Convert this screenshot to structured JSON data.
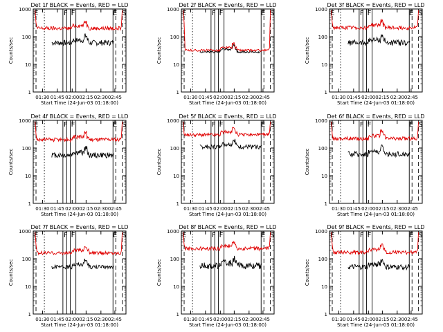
{
  "figure": {
    "xlabel": "Start Time (24-Jun-03 01:18:00)",
    "ylabel": "Counts/sec",
    "x_tick_labels": [
      "01:30",
      "01:45",
      "02:00",
      "02:15",
      "02:30",
      "02:45"
    ],
    "y_tick_labels": [
      "1",
      "10",
      "100",
      "1000"
    ],
    "region_markers": {
      "E_left": "E",
      "F": "F",
      "E_right": "E",
      "S": "S"
    },
    "colors": {
      "events": "#000000",
      "lld": "#e00000",
      "axes": "#000000",
      "background": "#ffffff"
    }
  },
  "chart_data": [
    {
      "type": "line",
      "title": "Det 1f BLACK = Events, RED = LLD",
      "ylim": [
        1,
        1000
      ],
      "yscale": "log",
      "x_range_minutes": [
        0,
        100
      ],
      "markers_minutes": {
        "E_left": 3,
        "F": [
          32,
          36,
          40,
          46
        ],
        "E_right": 86,
        "S": 96
      },
      "series": [
        {
          "name": "Events",
          "color": "#000000",
          "start": 18,
          "end": 89,
          "level": 60,
          "noise": 0.1
        },
        {
          "name": "LLD",
          "color": "#e00000",
          "start": 2,
          "end": 96,
          "level": 200,
          "noise": 0.07
        }
      ]
    },
    {
      "type": "line",
      "title": "Det 2f BLACK = Events, RED = LLD",
      "ylim": [
        1,
        1000
      ],
      "yscale": "log",
      "x_range_minutes": [
        0,
        100
      ],
      "markers_minutes": {
        "E_left": 3,
        "F": [
          32,
          36,
          40,
          46
        ],
        "E_right": 86,
        "S": 96
      },
      "series": [
        {
          "name": "Events",
          "color": "#000000",
          "start": 18,
          "end": 89,
          "level": 28,
          "noise": 0.04
        },
        {
          "name": "LLD",
          "color": "#e00000",
          "start": 2,
          "end": 96,
          "level": 32,
          "noise": 0.04
        }
      ]
    },
    {
      "type": "line",
      "title": "Det 3f BLACK = Events, RED = LLD",
      "ylim": [
        1,
        1000
      ],
      "yscale": "log",
      "x_range_minutes": [
        0,
        100
      ],
      "markers_minutes": {
        "E_left": 3,
        "F": [
          32,
          36,
          40,
          46
        ],
        "E_right": 86,
        "S": 96
      },
      "series": [
        {
          "name": "Events",
          "color": "#000000",
          "start": 18,
          "end": 89,
          "level": 60,
          "noise": 0.1
        },
        {
          "name": "LLD",
          "color": "#e00000",
          "start": 2,
          "end": 96,
          "level": 210,
          "noise": 0.07
        }
      ]
    },
    {
      "type": "line",
      "title": "Det 4f BLACK = Events, RED = LLD",
      "ylim": [
        1,
        1000
      ],
      "yscale": "log",
      "x_range_minutes": [
        0,
        100
      ],
      "markers_minutes": {
        "E_left": 3,
        "F": [
          32,
          36,
          40,
          46
        ],
        "E_right": 86,
        "S": 96
      },
      "series": [
        {
          "name": "Events",
          "color": "#000000",
          "start": 18,
          "end": 89,
          "level": 55,
          "noise": 0.1
        },
        {
          "name": "LLD",
          "color": "#e00000",
          "start": 2,
          "end": 96,
          "level": 200,
          "noise": 0.07
        }
      ]
    },
    {
      "type": "line",
      "title": "Det 5f BLACK = Events, RED = LLD",
      "ylim": [
        1,
        1000
      ],
      "yscale": "log",
      "x_range_minutes": [
        0,
        100
      ],
      "markers_minutes": {
        "E_left": 3,
        "F": [
          32,
          36,
          40,
          46
        ],
        "E_right": 86,
        "S": 96
      },
      "series": [
        {
          "name": "Events",
          "color": "#000000",
          "start": 18,
          "end": 89,
          "level": 110,
          "noise": 0.08
        },
        {
          "name": "LLD",
          "color": "#e00000",
          "start": 2,
          "end": 96,
          "level": 300,
          "noise": 0.06
        }
      ]
    },
    {
      "type": "line",
      "title": "Det 6f BLACK = Events, RED = LLD",
      "ylim": [
        1,
        1000
      ],
      "yscale": "log",
      "x_range_minutes": [
        0,
        100
      ],
      "markers_minutes": {
        "E_left": 3,
        "F": [
          32,
          36,
          40,
          46
        ],
        "E_right": 86,
        "S": 96
      },
      "series": [
        {
          "name": "Events",
          "color": "#000000",
          "start": 18,
          "end": 89,
          "level": 60,
          "noise": 0.1
        },
        {
          "name": "LLD",
          "color": "#e00000",
          "start": 2,
          "end": 96,
          "level": 220,
          "noise": 0.07
        }
      ]
    },
    {
      "type": "line",
      "title": "Det 7f BLACK = Events, RED = LLD",
      "ylim": [
        1,
        1000
      ],
      "yscale": "log",
      "x_range_minutes": [
        0,
        100
      ],
      "markers_minutes": {
        "E_left": 3,
        "F": [
          32,
          36,
          40,
          46
        ],
        "E_right": 86,
        "S": 96
      },
      "series": [
        {
          "name": "Events",
          "color": "#000000",
          "start": 18,
          "end": 89,
          "level": 50,
          "noise": 0.07
        },
        {
          "name": "LLD",
          "color": "#e00000",
          "start": 2,
          "end": 96,
          "level": 160,
          "noise": 0.06
        }
      ]
    },
    {
      "type": "line",
      "title": "Det 8f BLACK = Events, RED = LLD",
      "ylim": [
        1,
        1000
      ],
      "yscale": "log",
      "x_range_minutes": [
        0,
        100
      ],
      "markers_minutes": {
        "E_left": 3,
        "F": [
          32,
          36,
          40,
          46
        ],
        "E_right": 86,
        "S": 96
      },
      "series": [
        {
          "name": "Events",
          "color": "#000000",
          "start": 18,
          "end": 89,
          "level": 55,
          "noise": 0.12
        },
        {
          "name": "LLD",
          "color": "#e00000",
          "start": 2,
          "end": 96,
          "level": 230,
          "noise": 0.07
        }
      ]
    },
    {
      "type": "line",
      "title": "Det 9f BLACK = Events, RED = LLD",
      "ylim": [
        1,
        1000
      ],
      "yscale": "log",
      "x_range_minutes": [
        0,
        100
      ],
      "markers_minutes": {
        "E_left": 3,
        "F": [
          32,
          36,
          40,
          46
        ],
        "E_right": 86,
        "S": 96
      },
      "series": [
        {
          "name": "Events",
          "color": "#000000",
          "start": 18,
          "end": 89,
          "level": 50,
          "noise": 0.1
        },
        {
          "name": "LLD",
          "color": "#e00000",
          "start": 2,
          "end": 96,
          "level": 170,
          "noise": 0.07
        }
      ]
    }
  ]
}
